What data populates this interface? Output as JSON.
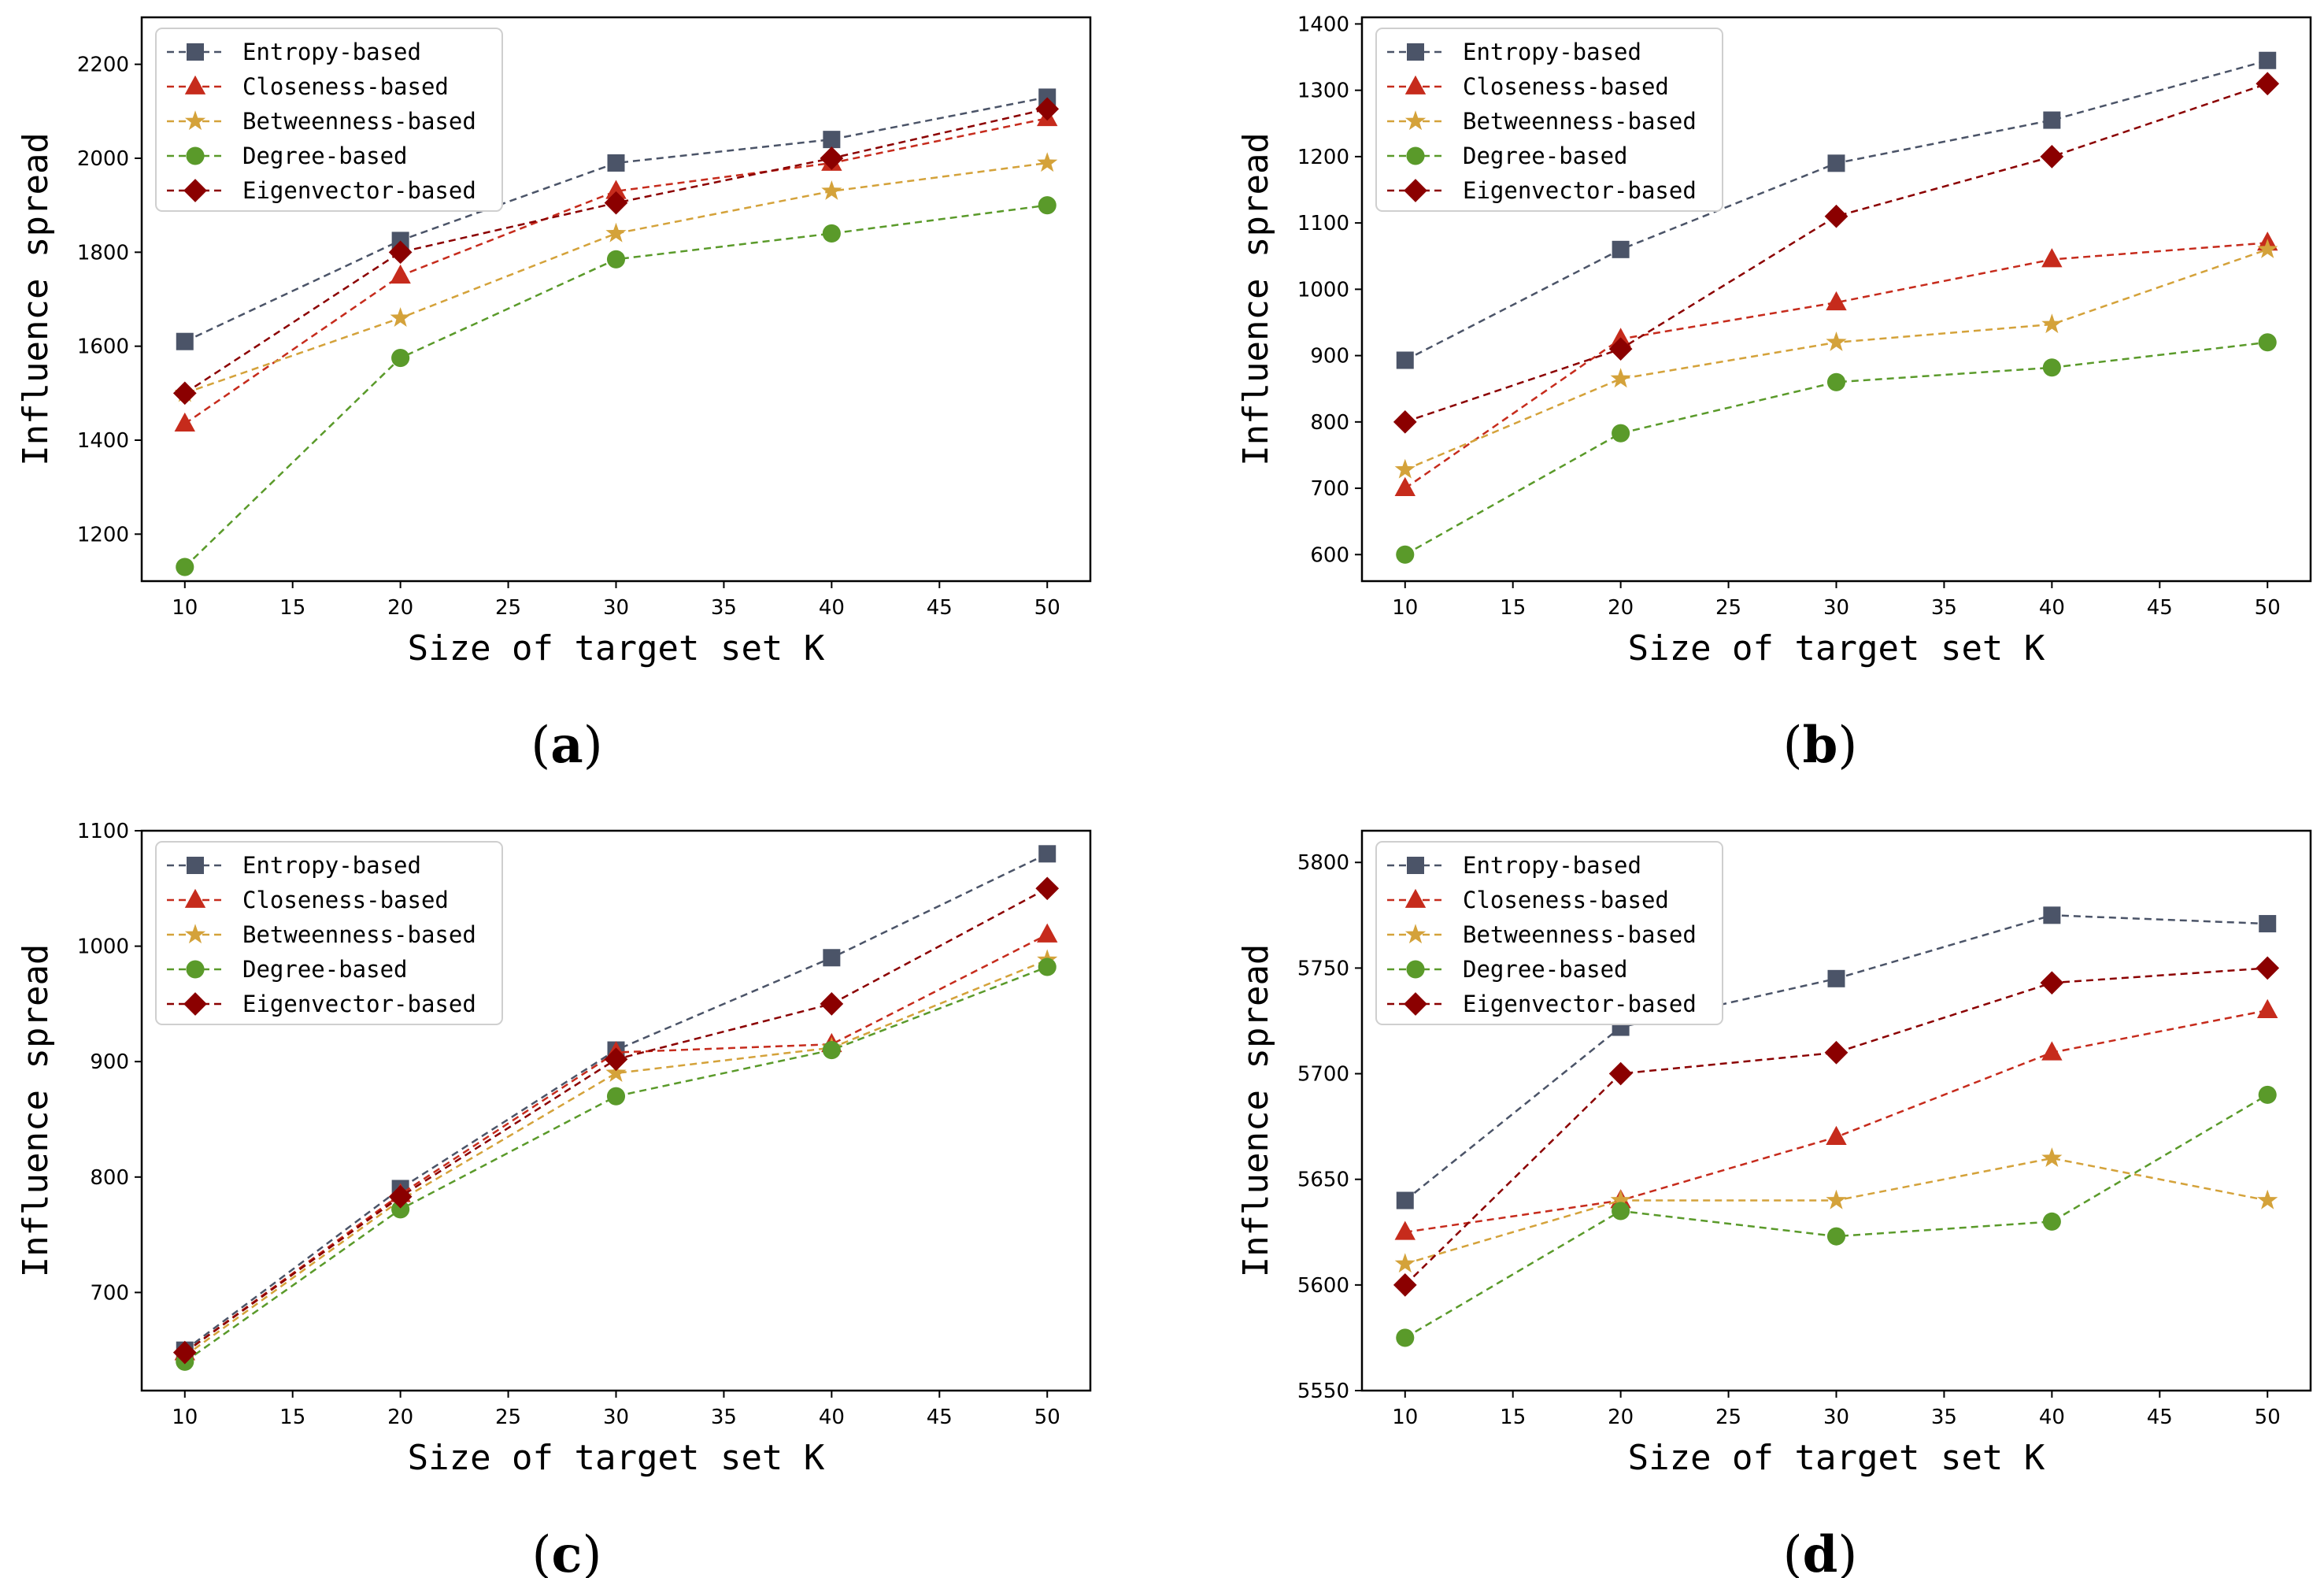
{
  "colors": {
    "entropy": "#4b5468",
    "closeness": "#c62b1c",
    "betweenness": "#d4a23a",
    "degree": "#5a9a2a",
    "eigenvector": "#8b0000"
  },
  "chart_data": [
    {
      "type": "line",
      "caption": "a",
      "xlabel": "Size of target set K",
      "ylabel": "Influence spread",
      "xlim": [
        8,
        52
      ],
      "ylim": [
        1100,
        2300
      ],
      "xticks": [
        10,
        15,
        20,
        25,
        30,
        35,
        40,
        45,
        50
      ],
      "yticks": [
        1200,
        1400,
        1600,
        1800,
        2000,
        2200
      ],
      "x": [
        10,
        20,
        30,
        40,
        50
      ],
      "legend_position": "upper-left",
      "series": [
        {
          "name": "Entropy-based",
          "marker": "square",
          "color": "#4b5468",
          "values": [
            1610,
            1825,
            1990,
            2040,
            2130
          ]
        },
        {
          "name": "Closeness-based",
          "marker": "triangle",
          "color": "#c62b1c",
          "values": [
            1435,
            1750,
            1930,
            1990,
            2085
          ]
        },
        {
          "name": "Betweenness-based",
          "marker": "star",
          "color": "#d4a23a",
          "values": [
            1500,
            1660,
            1840,
            1930,
            1990
          ]
        },
        {
          "name": "Degree-based",
          "marker": "circle",
          "color": "#5a9a2a",
          "values": [
            1130,
            1575,
            1785,
            1840,
            1900
          ]
        },
        {
          "name": "Eigenvector-based",
          "marker": "diamond",
          "color": "#8b0000",
          "values": [
            1500,
            1800,
            1905,
            2000,
            2105
          ]
        }
      ]
    },
    {
      "type": "line",
      "caption": "b",
      "xlabel": "Size of target set K",
      "ylabel": "Influence spread",
      "xlim": [
        8,
        52
      ],
      "ylim": [
        560,
        1410
      ],
      "xticks": [
        10,
        15,
        20,
        25,
        30,
        35,
        40,
        45,
        50
      ],
      "yticks": [
        600,
        700,
        800,
        900,
        1000,
        1100,
        1200,
        1300,
        1400
      ],
      "x": [
        10,
        20,
        30,
        40,
        50
      ],
      "legend_position": "upper-left",
      "series": [
        {
          "name": "Entropy-based",
          "marker": "square",
          "color": "#4b5468",
          "values": [
            893,
            1060,
            1190,
            1255,
            1345
          ]
        },
        {
          "name": "Closeness-based",
          "marker": "triangle",
          "color": "#c62b1c",
          "values": [
            700,
            925,
            980,
            1045,
            1070
          ]
        },
        {
          "name": "Betweenness-based",
          "marker": "star",
          "color": "#d4a23a",
          "values": [
            728,
            865,
            920,
            947,
            1060
          ]
        },
        {
          "name": "Degree-based",
          "marker": "circle",
          "color": "#5a9a2a",
          "values": [
            600,
            783,
            860,
            882,
            920
          ]
        },
        {
          "name": "Eigenvector-based",
          "marker": "diamond",
          "color": "#8b0000",
          "values": [
            800,
            910,
            1110,
            1200,
            1310
          ]
        }
      ]
    },
    {
      "type": "line",
      "caption": "c",
      "xlabel": "Size of target set K",
      "ylabel": "Influence spread",
      "xlim": [
        8,
        52
      ],
      "ylim": [
        615,
        1100
      ],
      "xticks": [
        10,
        15,
        20,
        25,
        30,
        35,
        40,
        45,
        50
      ],
      "yticks": [
        700,
        800,
        900,
        1000,
        1100
      ],
      "x": [
        10,
        20,
        30,
        40,
        50
      ],
      "legend_position": "upper-left",
      "series": [
        {
          "name": "Entropy-based",
          "marker": "square",
          "color": "#4b5468",
          "values": [
            650,
            790,
            910,
            990,
            1080
          ]
        },
        {
          "name": "Closeness-based",
          "marker": "triangle",
          "color": "#c62b1c",
          "values": [
            648,
            785,
            908,
            915,
            1010
          ]
        },
        {
          "name": "Betweenness-based",
          "marker": "star",
          "color": "#d4a23a",
          "values": [
            645,
            780,
            890,
            912,
            988
          ]
        },
        {
          "name": "Degree-based",
          "marker": "circle",
          "color": "#5a9a2a",
          "values": [
            640,
            772,
            870,
            910,
            982
          ]
        },
        {
          "name": "Eigenvector-based",
          "marker": "diamond",
          "color": "#8b0000",
          "values": [
            648,
            783,
            902,
            950,
            1050
          ]
        }
      ]
    },
    {
      "type": "line",
      "caption": "d",
      "xlabel": "Size of target set K",
      "ylabel": "Influence spread",
      "xlim": [
        8,
        52
      ],
      "ylim": [
        5550,
        5815
      ],
      "xticks": [
        10,
        15,
        20,
        25,
        30,
        35,
        40,
        45,
        50
      ],
      "yticks": [
        5550,
        5600,
        5650,
        5700,
        5750,
        5800
      ],
      "x": [
        10,
        20,
        30,
        40,
        50
      ],
      "legend_position": "upper-left",
      "series": [
        {
          "name": "Entropy-based",
          "marker": "square",
          "color": "#4b5468",
          "values": [
            5640,
            5722,
            5745,
            5775,
            5771
          ]
        },
        {
          "name": "Closeness-based",
          "marker": "triangle",
          "color": "#c62b1c",
          "values": [
            5625,
            5640,
            5670,
            5710,
            5730
          ]
        },
        {
          "name": "Betweenness-based",
          "marker": "star",
          "color": "#d4a23a",
          "values": [
            5610,
            5640,
            5640,
            5660,
            5640
          ]
        },
        {
          "name": "Degree-based",
          "marker": "circle",
          "color": "#5a9a2a",
          "values": [
            5575,
            5635,
            5623,
            5630,
            5690
          ]
        },
        {
          "name": "Eigenvector-based",
          "marker": "diamond",
          "color": "#8b0000",
          "values": [
            5600,
            5700,
            5710,
            5743,
            5750
          ]
        }
      ]
    }
  ]
}
